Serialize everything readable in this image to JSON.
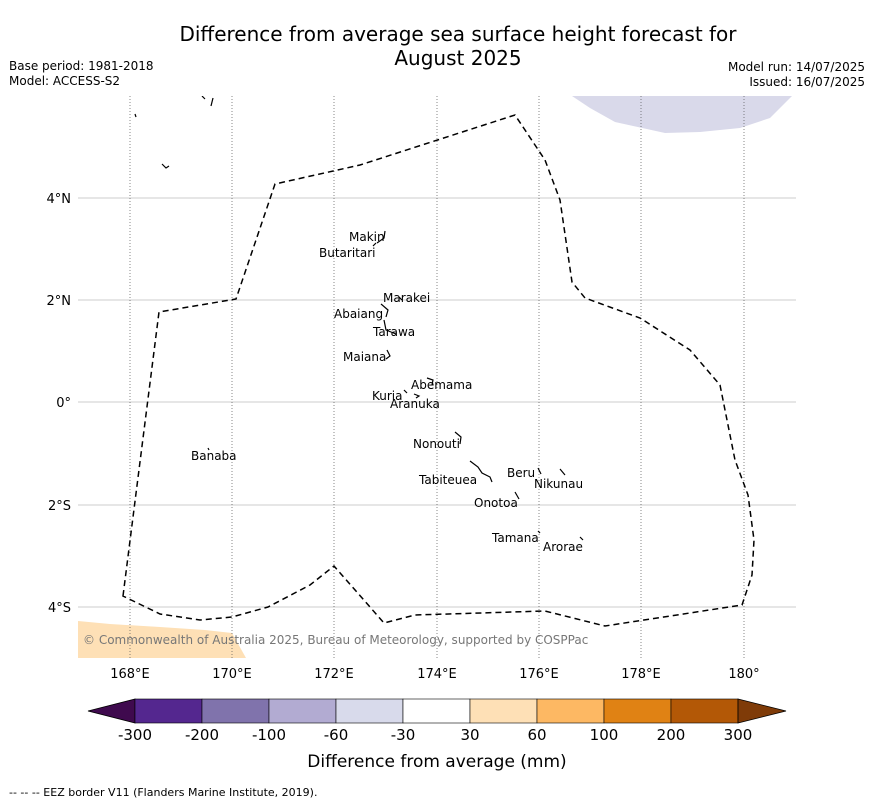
{
  "title_line1": "Difference from average sea surface height forecast for",
  "title_line2": "August 2025",
  "meta": {
    "base_period": "Base period: 1981-2018",
    "model": "Model: ACCESS-S2",
    "model_run": "Model run: 14/07/2025",
    "issued": "Issued: 16/07/2025"
  },
  "attribution": "© Commonwealth of Australia 2025, Bureau of Meteorology, supported by COSPPac",
  "footer": "-- -- -- EEZ border V11 (Flanders Marine Institute, 2019).",
  "map": {
    "lon_ticks": [
      "168°E",
      "170°E",
      "172°E",
      "174°E",
      "176°E",
      "178°E",
      "180°"
    ],
    "lat_ticks": [
      "4°N",
      "2°N",
      "0°",
      "2°S",
      "4°S"
    ],
    "islands": [
      {
        "name": "Makin"
      },
      {
        "name": "Butaritari"
      },
      {
        "name": "Marakei"
      },
      {
        "name": "Abaiang"
      },
      {
        "name": "Tarawa"
      },
      {
        "name": "Maiana"
      },
      {
        "name": "Abemama"
      },
      {
        "name": "Kuria"
      },
      {
        "name": "Aranuka"
      },
      {
        "name": "Nonouti"
      },
      {
        "name": "Banaba"
      },
      {
        "name": "Tabiteuea"
      },
      {
        "name": "Beru"
      },
      {
        "name": "Nikunau"
      },
      {
        "name": "Onotoa"
      },
      {
        "name": "Tamana"
      },
      {
        "name": "Arorae"
      }
    ],
    "shading": [
      {
        "category": "-60 to -30",
        "color": "#d9d9ea"
      },
      {
        "category": "30 to 60",
        "color": "#fee0b6"
      }
    ]
  },
  "colorbar": {
    "label": "Difference from average (mm)",
    "ticks": [
      "-300",
      "-200",
      "-100",
      "-60",
      "-30",
      "30",
      "60",
      "100",
      "200",
      "300"
    ],
    "colors": [
      "#3f0a4e",
      "#54278f",
      "#8073ac",
      "#b2abd2",
      "#d8daeb",
      "#ffffff",
      "#fee0b6",
      "#fdb863",
      "#e08214",
      "#b35806",
      "#7f3b08"
    ]
  }
}
